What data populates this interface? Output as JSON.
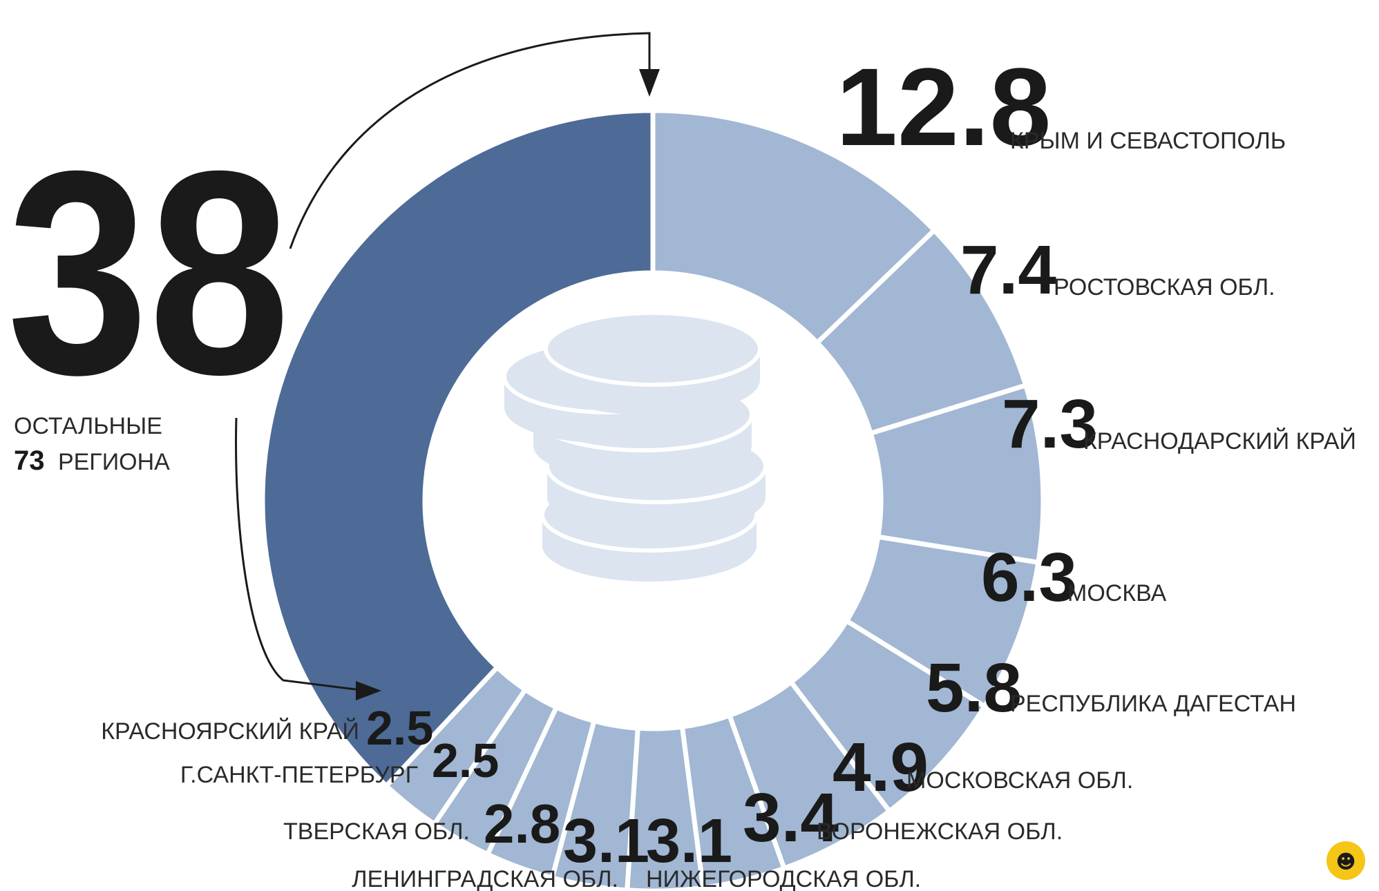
{
  "chart_data": {
    "type": "pie",
    "style": "donut",
    "colors": {
      "others": "#4d6b96",
      "regions": "#a1b7d3",
      "separator": "#ffffff",
      "coins": "#dbe4ef",
      "text": "#1a1a1a",
      "badge": "#f5c518"
    },
    "others": {
      "value": 38,
      "value_label": "38",
      "line1": "ОСТАЛЬНЫЕ",
      "count": "73",
      "line2": "РЕГИОНА"
    },
    "slices": [
      {
        "name": "КРЫМ И СЕВАСТОПОЛЬ",
        "value": 12.8,
        "value_label": "12.8"
      },
      {
        "name": "РОСТОВСКАЯ ОБЛ.",
        "value": 7.4,
        "value_label": "7.4"
      },
      {
        "name": "КРАСНОДАРСКИЙ КРАЙ",
        "value": 7.3,
        "value_label": "7.3"
      },
      {
        "name": "МОСКВА",
        "value": 6.3,
        "value_label": "6.3"
      },
      {
        "name": "РЕСПУБЛИКА ДАГЕСТАН",
        "value": 5.8,
        "value_label": "5.8"
      },
      {
        "name": "МОСКОВСКАЯ ОБЛ.",
        "value": 4.9,
        "value_label": "4.9"
      },
      {
        "name": "ВОРОНЕЖСКАЯ ОБЛ.",
        "value": 3.4,
        "value_label": "3.4"
      },
      {
        "name": "НИЖЕГОРОДСКАЯ ОБЛ.",
        "value": 3.1,
        "value_label": "3.1"
      },
      {
        "name": "ЛЕНИНГРАДСКАЯ ОБЛ.",
        "value": 3.1,
        "value_label": "3.1"
      },
      {
        "name": "ТВЕРСКАЯ ОБЛ.",
        "value": 2.8,
        "value_label": "2.8"
      },
      {
        "name": "Г.САНКТ-ПЕТЕРБУРГ",
        "value": 2.5,
        "value_label": "2.5"
      },
      {
        "name": "КРАСНОЯРСКИЙ КРАЙ",
        "value": 2.5,
        "value_label": "2.5"
      }
    ]
  }
}
